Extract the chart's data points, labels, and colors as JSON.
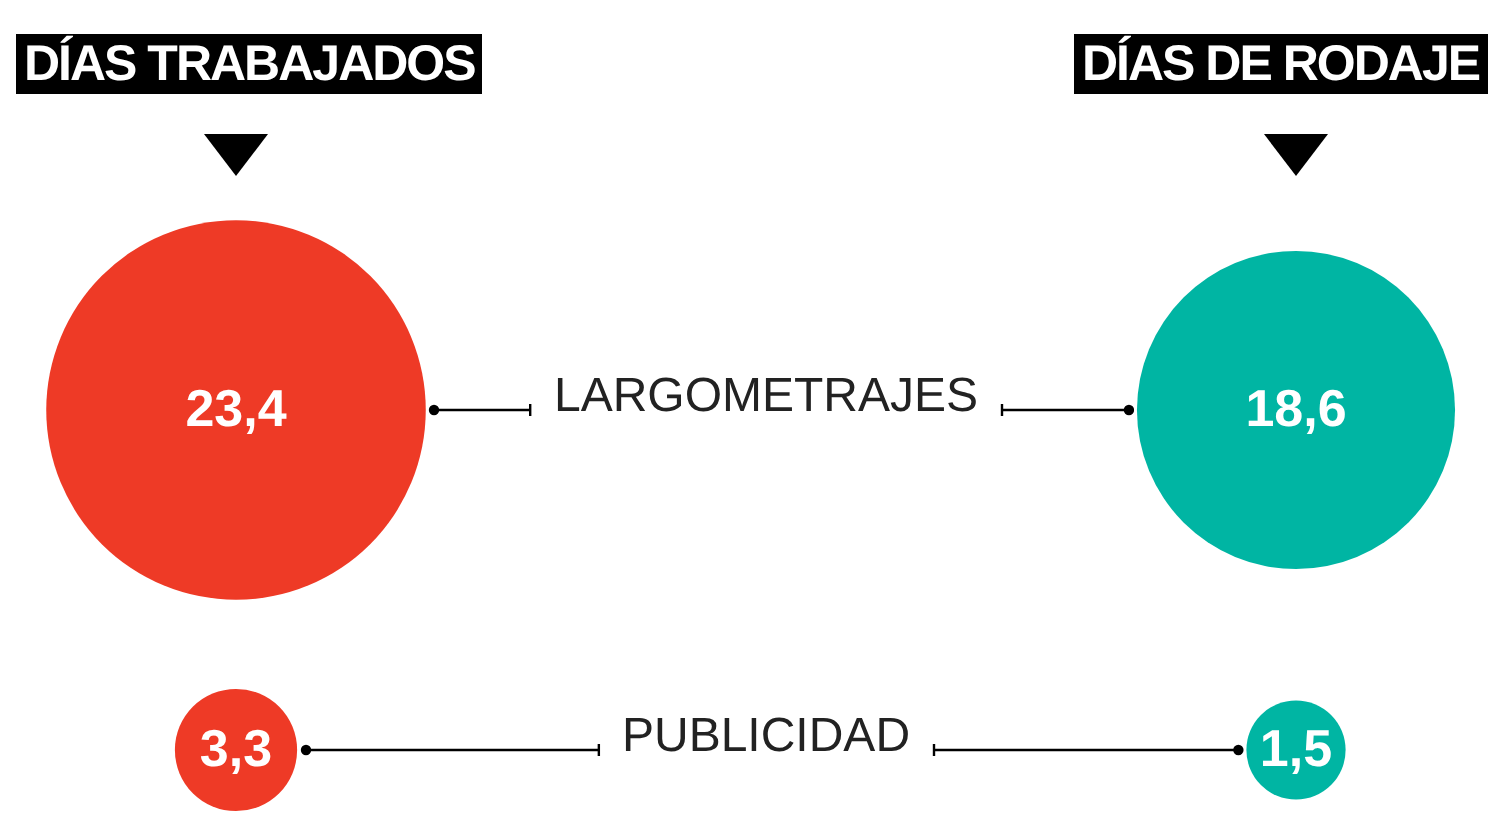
{
  "chart_data": {
    "type": "other",
    "categories": [
      "DÍAS TRABAJADOS",
      "DÍAS DE RODAJE"
    ],
    "series": [
      {
        "name": "LARGOMETRAJES",
        "colors": [
          "#ee3a26",
          "#00b5a3"
        ],
        "values": [
          23.4,
          18.6
        ],
        "value_labels": [
          "23,4",
          "18,6"
        ]
      },
      {
        "name": "PUBLICIDAD",
        "colors": [
          "#ee3a26",
          "#00b5a3"
        ],
        "values": [
          3.3,
          1.5
        ],
        "value_labels": [
          "3,3",
          "1,5"
        ]
      }
    ],
    "legend": false
  }
}
